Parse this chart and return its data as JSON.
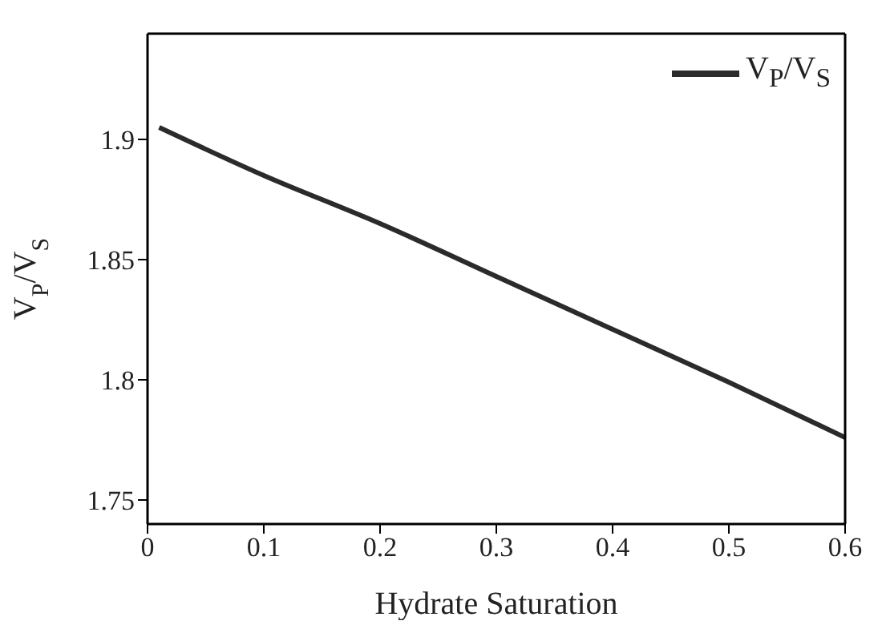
{
  "chart_data": {
    "type": "line",
    "xlabel": "Hydrate Saturation",
    "ylabel": "V$_{P}$/V$_{S}$",
    "x": [
      0.01,
      0.1,
      0.2,
      0.3,
      0.4,
      0.5,
      0.6
    ],
    "series": [
      {
        "name": "V$_{P}$/V$_{S}$",
        "color": "#2b2b2b",
        "values": [
          1.905,
          1.885,
          1.865,
          1.843,
          1.821,
          1.799,
          1.776
        ]
      }
    ],
    "xlim": [
      0,
      0.6
    ],
    "xticks": [
      0,
      0.1,
      0.2,
      0.3,
      0.4,
      0.5,
      0.6
    ],
    "ylim": [
      1.74,
      1.944
    ],
    "yticks": [
      1.75,
      1.8,
      1.85,
      1.9
    ],
    "legend": "top right",
    "marker": "none",
    "line_style": "solid",
    "grid": false
  }
}
